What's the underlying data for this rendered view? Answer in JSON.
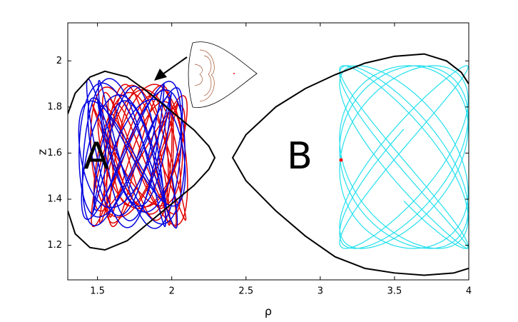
{
  "chart_data": {
    "type": "line",
    "xlabel": "ρ",
    "ylabel": "z",
    "annotations": [
      "A",
      "B"
    ],
    "xlim": [
      1.3,
      4
    ],
    "ylim": [
      1.05,
      2.165
    ],
    "xticks": [
      1.5,
      2,
      2.5,
      3,
      3.5,
      4
    ],
    "yticks": [
      1.2,
      1.4,
      1.6,
      1.8,
      2
    ],
    "series": [
      {
        "color": "#000000",
        "x": [
          1.3,
          1.35,
          1.45,
          1.55,
          1.7,
          1.85,
          2.0,
          2.15,
          2.25,
          2.29,
          2.25,
          2.15,
          2.0,
          1.85,
          1.7,
          1.55,
          1.45,
          1.35,
          1.3
        ],
        "values": [
          1.77,
          1.86,
          1.93,
          1.955,
          1.93,
          1.86,
          1.78,
          1.7,
          1.63,
          1.58,
          1.53,
          1.46,
          1.38,
          1.3,
          1.22,
          1.18,
          1.19,
          1.25,
          1.35
        ]
      },
      {
        "color": "#000000",
        "x": [
          4.0,
          3.95,
          3.85,
          3.7,
          3.5,
          3.3,
          3.1,
          2.9,
          2.7,
          2.5,
          2.41,
          2.5,
          2.7,
          2.9,
          3.1,
          3.3,
          3.5,
          3.7,
          3.9,
          4.0
        ],
        "values": [
          1.9,
          1.95,
          2.0,
          2.03,
          2.02,
          1.99,
          1.94,
          1.88,
          1.8,
          1.68,
          1.58,
          1.48,
          1.35,
          1.24,
          1.15,
          1.1,
          1.08,
          1.07,
          1.08,
          1.1
        ]
      }
    ],
    "point": {
      "x": 3.14,
      "y": 1.57,
      "color": "#ff0000"
    }
  }
}
